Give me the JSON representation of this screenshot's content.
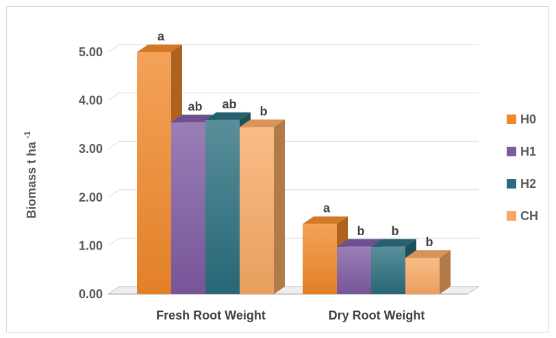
{
  "chart_data": {
    "type": "bar",
    "ylabel": "Biomass t ha",
    "ylabel_superscript": "-1",
    "ylim": [
      0,
      5
    ],
    "yticks": [
      "0.00",
      "1.00",
      "2.00",
      "3.00",
      "4.00",
      "5.00"
    ],
    "categories": [
      "Fresh Root Weight",
      "Dry Root Weight"
    ],
    "grid": true,
    "legend_position": "right",
    "series": [
      {
        "name": "H0",
        "values": [
          5.0,
          1.45
        ],
        "labels": [
          "a",
          "a"
        ],
        "color": "#f0882a"
      },
      {
        "name": "H1",
        "values": [
          3.55,
          0.98
        ],
        "labels": [
          "ab",
          "b"
        ],
        "color": "#7e5aa2"
      },
      {
        "name": "H2",
        "values": [
          3.6,
          0.98
        ],
        "labels": [
          "ab",
          "b"
        ],
        "color": "#2a6e7d"
      },
      {
        "name": "CH",
        "values": [
          3.45,
          0.75
        ],
        "labels": [
          "b",
          "b"
        ],
        "color": "#f7a964"
      }
    ]
  }
}
